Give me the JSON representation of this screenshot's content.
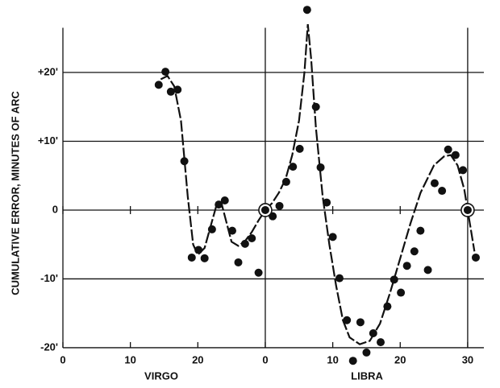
{
  "chart_data": {
    "type": "scatter",
    "y_label": "CUMULATIVE ERROR, MINUTES OF ARC",
    "x_sections": [
      "VIRGO",
      "LIBRA"
    ],
    "xlim": [
      0,
      62.4
    ],
    "ylim": [
      -23,
      30
    ],
    "xticks": [
      0,
      10,
      20,
      {
        "value": 30,
        "label": "0"
      },
      {
        "value": 40,
        "label": "10"
      },
      {
        "value": 50,
        "label": "20"
      },
      {
        "value": 60,
        "label": "30"
      }
    ],
    "yticks": [
      {
        "value": -20,
        "label": "-20'"
      },
      {
        "value": -10,
        "label": "-10'"
      },
      0,
      {
        "value": 10,
        "label": "+10'"
      },
      {
        "value": 20,
        "label": "+20'"
      }
    ],
    "xgrid": [
      0,
      30,
      60
    ],
    "grid": true,
    "color": "#111111",
    "points": {
      "x": [
        14.2,
        15.2,
        16.0,
        17.0,
        18.0,
        19.1,
        20.1,
        21.0,
        22.1,
        23.1,
        24.0,
        25.1,
        26.0,
        27.0,
        28.0,
        29.0,
        31.1,
        32.1,
        33.1,
        34.1,
        35.1,
        36.2,
        37.5,
        38.2,
        39.1,
        40.0,
        41.0,
        42.1,
        43.0,
        44.1,
        45.0,
        46.0,
        47.1,
        48.1,
        49.1,
        50.1,
        51.0,
        52.1,
        53.0,
        54.1,
        55.1,
        56.2,
        57.1,
        58.2,
        59.3,
        61.2
      ],
      "y": [
        18.2,
        20.1,
        17.2,
        17.5,
        7.1,
        -6.9,
        -5.8,
        -7.0,
        -2.8,
        0.8,
        1.4,
        -3.0,
        -7.6,
        -4.9,
        -4.1,
        -9.1,
        -0.9,
        0.6,
        4.1,
        6.3,
        8.9,
        29.1,
        15.0,
        6.2,
        1.1,
        -3.9,
        -9.9,
        -16.0,
        -21.9,
        -16.3,
        -20.7,
        -17.9,
        -19.2,
        -14.0,
        -10.1,
        -12.0,
        -8.1,
        -6.0,
        -3.0,
        -8.7,
        3.9,
        2.8,
        8.8,
        8.0,
        5.8,
        -6.9
      ]
    },
    "circled_points": {
      "x": [
        30,
        60
      ],
      "y": [
        0,
        0
      ]
    },
    "curve": {
      "x": [
        14.5,
        15.5,
        16.5,
        17.5,
        18.5,
        19.3,
        20,
        21,
        22,
        22.8,
        23.5,
        24.3,
        25,
        26,
        27,
        28,
        29,
        30,
        31,
        32,
        33,
        34,
        35,
        35.8,
        36.3,
        36.8,
        37.5,
        38.5,
        39.5,
        40.5,
        41.5,
        42.5,
        44,
        45.5,
        47,
        48.5,
        50,
        51.5,
        53,
        55,
        56.5,
        57.5,
        58.5,
        59.5,
        60,
        60.5,
        61
      ],
      "y": [
        19,
        19.5,
        18,
        13,
        2,
        -5,
        -6.5,
        -5.5,
        -2,
        0.8,
        1,
        -2,
        -4.6,
        -5.2,
        -4.5,
        -3.2,
        -1.5,
        0,
        1,
        2.5,
        4.5,
        8,
        13,
        20,
        27,
        22,
        12,
        2,
        -5,
        -11,
        -16,
        -18.5,
        -19.5,
        -19,
        -16.5,
        -12,
        -7,
        -2,
        2.5,
        6.5,
        7.8,
        8,
        6.5,
        3,
        0,
        -3,
        -6
      ]
    }
  }
}
